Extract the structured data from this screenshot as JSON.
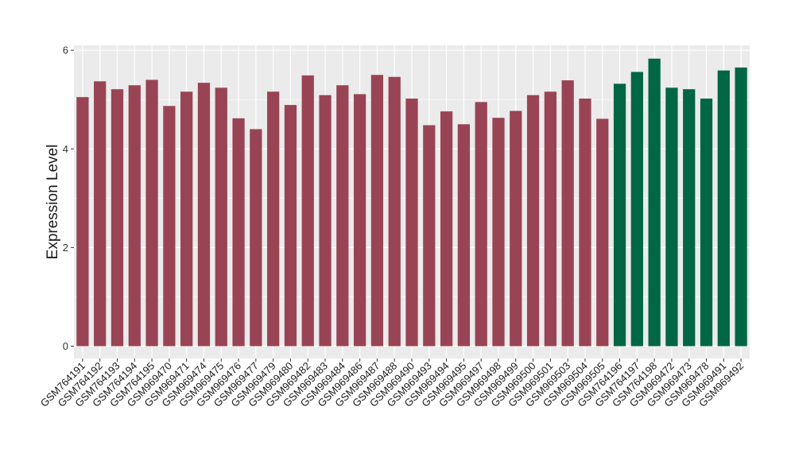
{
  "chart_data": {
    "type": "bar",
    "title": "",
    "xlabel": "",
    "ylabel": "Expression Level",
    "ylim": [
      -0.25,
      6.1
    ],
    "yticks": [
      0,
      2,
      4,
      6
    ],
    "grid": true,
    "categories": [
      "GSM764191",
      "GSM764192",
      "GSM764193",
      "GSM764194",
      "GSM764195",
      "GSM969470",
      "GSM969471",
      "GSM969474",
      "GSM969475",
      "GSM969476",
      "GSM969477",
      "GSM969479",
      "GSM969480",
      "GSM969482",
      "GSM969483",
      "GSM969484",
      "GSM969486",
      "GSM969487",
      "GSM969488",
      "GSM969490",
      "GSM969493",
      "GSM969494",
      "GSM969495",
      "GSM969497",
      "GSM969498",
      "GSM969499",
      "GSM969500",
      "GSM969501",
      "GSM969503",
      "GSM969504",
      "GSM969505",
      "GSM764196",
      "GSM764197",
      "GSM764198",
      "GSM969472",
      "GSM969473",
      "GSM969478",
      "GSM969491",
      "GSM969492"
    ],
    "values": [
      5.05,
      5.37,
      5.21,
      5.29,
      5.4,
      4.87,
      5.16,
      5.34,
      5.24,
      4.62,
      4.4,
      5.16,
      4.89,
      5.49,
      5.09,
      5.29,
      5.11,
      5.5,
      5.46,
      5.02,
      4.48,
      4.76,
      4.5,
      4.95,
      4.63,
      4.77,
      5.09,
      5.16,
      5.39,
      5.02,
      4.61,
      5.32,
      5.56,
      5.83,
      5.24,
      5.21,
      5.02,
      5.59,
      5.65
    ],
    "bar_colors": [
      "#994455",
      "#994455",
      "#994455",
      "#994455",
      "#994455",
      "#994455",
      "#994455",
      "#994455",
      "#994455",
      "#994455",
      "#994455",
      "#994455",
      "#994455",
      "#994455",
      "#994455",
      "#994455",
      "#994455",
      "#994455",
      "#994455",
      "#994455",
      "#994455",
      "#994455",
      "#994455",
      "#994455",
      "#994455",
      "#994455",
      "#994455",
      "#994455",
      "#994455",
      "#994455",
      "#994455",
      "#006644",
      "#006644",
      "#006644",
      "#006644",
      "#006644",
      "#006644",
      "#006644",
      "#006644"
    ],
    "colors": {
      "panel": "#EBEBEB",
      "grid": "#FFFFFF",
      "text": "#1A1A1A",
      "tick": "#333333"
    }
  }
}
